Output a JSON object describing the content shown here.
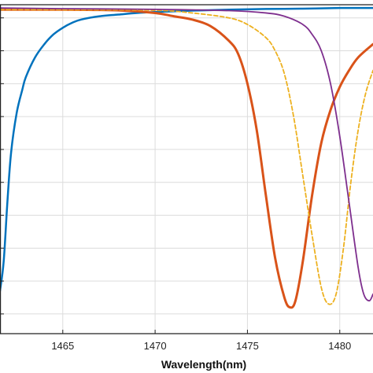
{
  "chart_data": {
    "type": "line",
    "title": "",
    "xlabel": "Wavelength(nm)",
    "ylabel": "",
    "xlim": [
      1461.6,
      1481.8
    ],
    "ylim": [
      0,
      1
    ],
    "xticks": [
      1465,
      1470,
      1475,
      1480
    ],
    "xtick_labels": [
      "1465",
      "1470",
      "1475",
      "1480"
    ],
    "yticks": [
      0.06,
      0.16,
      0.26,
      0.36,
      0.46,
      0.56,
      0.66,
      0.76,
      0.86,
      0.96
    ],
    "grid": true,
    "legend": "none",
    "series": [
      {
        "color": "#0072BD",
        "style": "solid",
        "x": [
          1461.6,
          1461.8,
          1462.0,
          1462.2,
          1462.5,
          1462.8,
          1463.0,
          1463.5,
          1464.0,
          1464.5,
          1465.0,
          1465.5,
          1466.0,
          1467.0,
          1468.0,
          1469.0,
          1470.0,
          1472.0,
          1474.0,
          1476.0,
          1478.0,
          1480.0,
          1481.8
        ],
        "y": [
          0.13,
          0.22,
          0.4,
          0.55,
          0.67,
          0.74,
          0.78,
          0.84,
          0.88,
          0.91,
          0.93,
          0.945,
          0.955,
          0.965,
          0.97,
          0.975,
          0.978,
          0.982,
          0.985,
          0.987,
          0.988,
          0.99,
          0.99
        ]
      },
      {
        "color": "#D95319",
        "style": "solid",
        "x": [
          1461.6,
          1465.0,
          1468.0,
          1470.0,
          1471.0,
          1472.0,
          1473.0,
          1474.0,
          1474.5,
          1475.0,
          1475.5,
          1476.0,
          1476.5,
          1477.0,
          1477.3,
          1477.6,
          1478.0,
          1478.5,
          1479.0,
          1479.5,
          1480.0,
          1480.5,
          1481.0,
          1481.8
        ],
        "y": [
          0.985,
          0.985,
          0.983,
          0.975,
          0.965,
          0.955,
          0.935,
          0.89,
          0.85,
          0.76,
          0.62,
          0.42,
          0.23,
          0.11,
          0.08,
          0.1,
          0.22,
          0.42,
          0.58,
          0.68,
          0.75,
          0.8,
          0.84,
          0.88
        ]
      },
      {
        "color": "#EDB120",
        "style": "dashed",
        "x": [
          1461.6,
          1465.0,
          1470.0,
          1472.0,
          1474.0,
          1475.0,
          1476.0,
          1476.5,
          1477.0,
          1477.5,
          1478.0,
          1478.5,
          1479.0,
          1479.4,
          1479.8,
          1480.2,
          1480.6,
          1481.0,
          1481.4,
          1481.8
        ],
        "y": [
          0.985,
          0.985,
          0.983,
          0.975,
          0.96,
          0.94,
          0.9,
          0.86,
          0.79,
          0.66,
          0.48,
          0.3,
          0.14,
          0.09,
          0.12,
          0.26,
          0.46,
          0.62,
          0.73,
          0.8
        ]
      },
      {
        "color": "#7E2F8E",
        "style": "solid",
        "x": [
          1461.6,
          1465.0,
          1470.0,
          1474.0,
          1476.0,
          1477.0,
          1478.0,
          1478.5,
          1479.0,
          1479.5,
          1480.0,
          1480.5,
          1481.0,
          1481.3,
          1481.6,
          1481.8
        ],
        "y": [
          0.99,
          0.988,
          0.986,
          0.982,
          0.975,
          0.965,
          0.94,
          0.91,
          0.86,
          0.76,
          0.6,
          0.4,
          0.2,
          0.12,
          0.1,
          0.12
        ]
      }
    ]
  }
}
